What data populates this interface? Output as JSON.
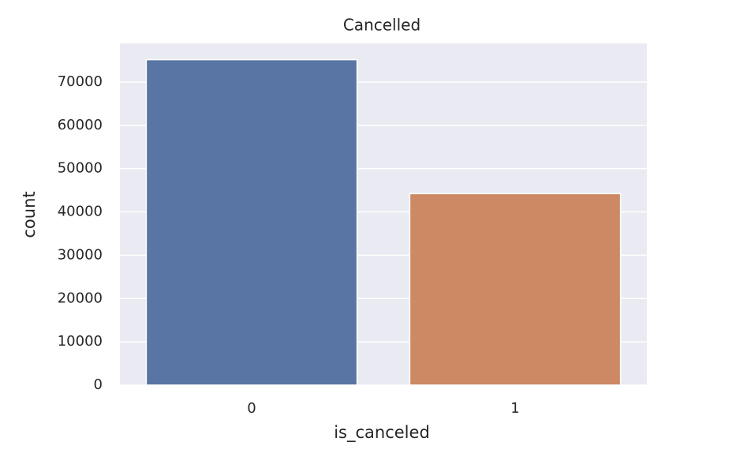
{
  "chart_data": {
    "type": "bar",
    "title": "Cancelled",
    "x_label": "is_canceled",
    "y_label": "count",
    "categories": [
      "0",
      "1"
    ],
    "values": [
      75166,
      44224
    ],
    "colors": [
      "#5975a4",
      "#cc8963"
    ],
    "ylim": [
      0,
      78924
    ],
    "yticks": [
      0,
      10000,
      20000,
      30000,
      40000,
      50000,
      60000,
      70000
    ],
    "grid": true
  }
}
